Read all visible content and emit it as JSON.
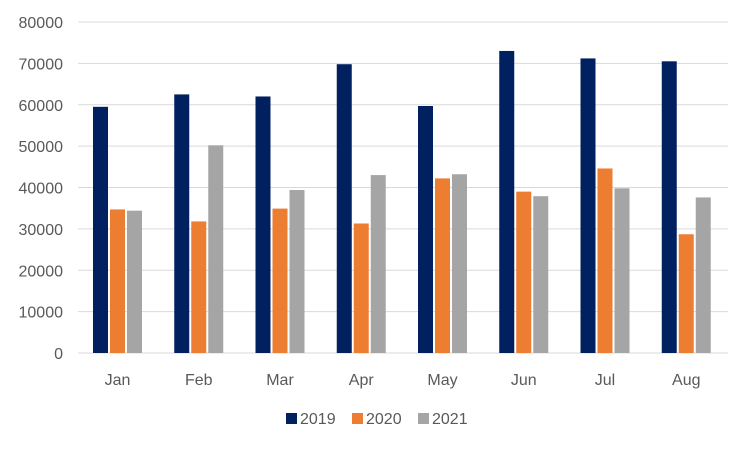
{
  "chart_data": {
    "type": "bar",
    "title": "",
    "xlabel": "",
    "ylabel": "",
    "categories": [
      "Jan",
      "Feb",
      "Mar",
      "Apr",
      "May",
      "Jun",
      "Jul",
      "Aug"
    ],
    "series": [
      {
        "name": "2019",
        "color": "#002060",
        "values": [
          59500,
          62500,
          62000,
          69800,
          59700,
          73000,
          71200,
          70500
        ]
      },
      {
        "name": "2020",
        "color": "#ED7D31",
        "values": [
          34700,
          31800,
          34900,
          31300,
          42200,
          39000,
          44600,
          28700
        ]
      },
      {
        "name": "2021",
        "color": "#A5A5A5",
        "values": [
          34400,
          50200,
          39400,
          43000,
          43200,
          37900,
          39800,
          37600
        ]
      }
    ],
    "ylim": [
      0,
      80000
    ],
    "yticks": [
      0,
      10000,
      20000,
      30000,
      40000,
      50000,
      60000,
      70000,
      80000
    ],
    "grid": true,
    "legend_position": "bottom"
  }
}
